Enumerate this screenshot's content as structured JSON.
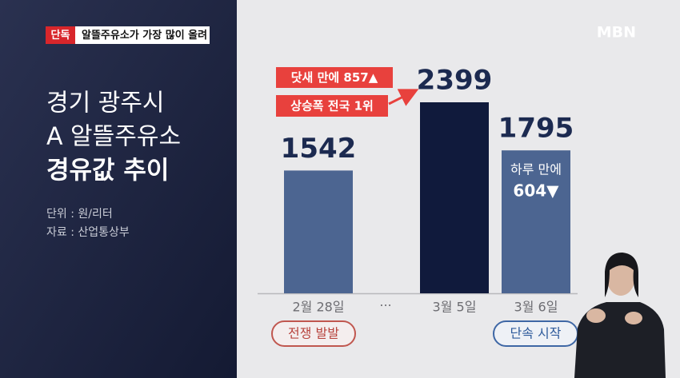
{
  "header": {
    "badge": "단독",
    "headline": "알뜰주유소가 가장 많이 올려",
    "logo": "MBN"
  },
  "panel": {
    "title_lines": [
      "경기 광주시",
      "A 알뜰주유소",
      "경유값 추이"
    ],
    "unit": "단위 : 원/리터",
    "source": "자료 : 산업통상부"
  },
  "chart_data": {
    "type": "bar",
    "categories": [
      "2월 28일",
      "3월 5일",
      "3월 6일"
    ],
    "values": [
      1542,
      2399,
      1795
    ],
    "colors": [
      "#4c6591",
      "#101a3c",
      "#4c6591"
    ],
    "gap_label": "···",
    "annotations": {
      "rise_days": "닷새 만에 857▲",
      "rise_rank": "상승폭 전국 1위",
      "drop_day_1": "하루 만에",
      "drop_day_2": "604▼",
      "event_start": "전쟁 발발",
      "event_crackdown": "단속 시작"
    }
  }
}
